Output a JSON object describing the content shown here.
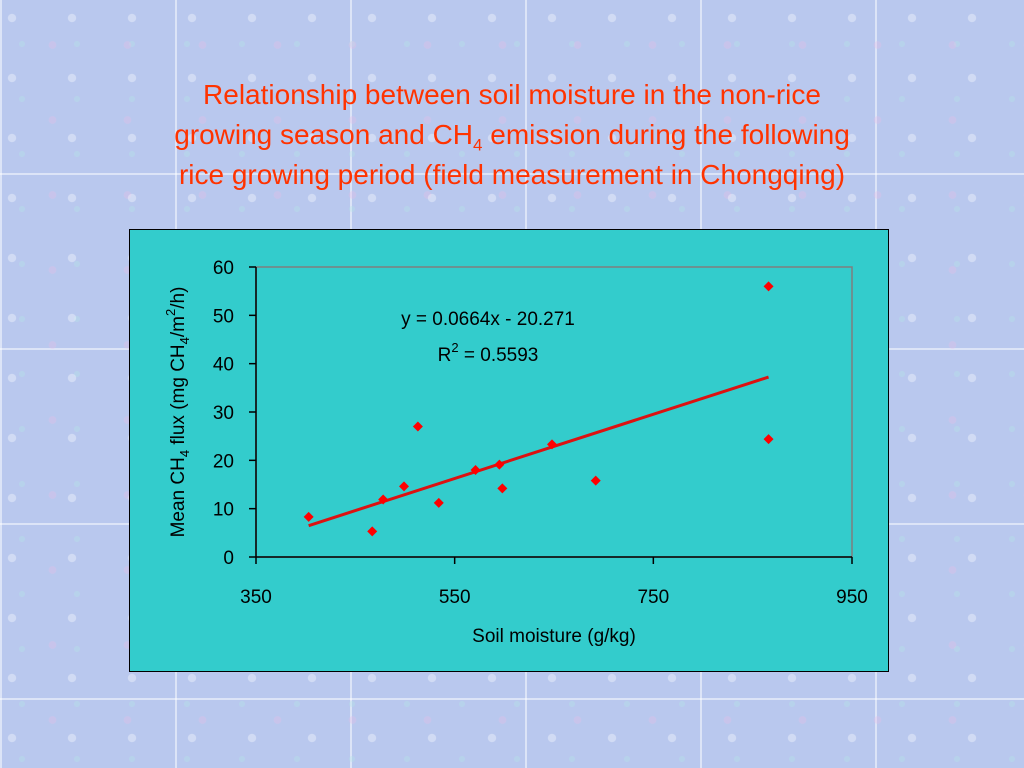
{
  "title": {
    "line1": "Relationship between soil moisture in the non-rice",
    "line2_before": "growing season and CH",
    "line2_sub": "4",
    "line2_after": " emission during the following",
    "line3": "rice growing period (field measurement in Chongqing)"
  },
  "colors": {
    "title": "#ff3300",
    "plot_area": "#33cccc",
    "points": "#ff0000",
    "trendline": "#dd1111"
  },
  "chart_data": {
    "type": "scatter",
    "xlabel": "Soil moisture (g/kg)",
    "ylabel": {
      "before": "Mean CH",
      "sub": "4",
      "middle": " flux (mg CH",
      "sub2": "4",
      "middle2": "/m",
      "sup": "2",
      "after": "/h)"
    },
    "xlim": [
      350,
      950
    ],
    "ylim": [
      0,
      60
    ],
    "xticks": [
      350,
      550,
      750,
      950
    ],
    "yticks": [
      0,
      10,
      20,
      30,
      40,
      50,
      60
    ],
    "grid": false,
    "points": [
      {
        "x": 403,
        "y": 8.3
      },
      {
        "x": 467,
        "y": 5.3
      },
      {
        "x": 478,
        "y": 11.9
      },
      {
        "x": 499,
        "y": 14.6
      },
      {
        "x": 513,
        "y": 27.0
      },
      {
        "x": 534,
        "y": 11.2
      },
      {
        "x": 571,
        "y": 18.0
      },
      {
        "x": 595,
        "y": 19.1
      },
      {
        "x": 598,
        "y": 14.2
      },
      {
        "x": 648,
        "y": 23.3
      },
      {
        "x": 692,
        "y": 15.8
      },
      {
        "x": 866,
        "y": 56.0
      },
      {
        "x": 866,
        "y": 24.4
      }
    ],
    "trendline": {
      "slope": 0.0664,
      "intercept": -20.271,
      "x_range": [
        403,
        866
      ]
    },
    "equation": {
      "text": "y = 0.0664x - 20.271",
      "r2_prefix": "R",
      "r2_sup": "2",
      "r2_suffix": " = 0.5593"
    }
  }
}
